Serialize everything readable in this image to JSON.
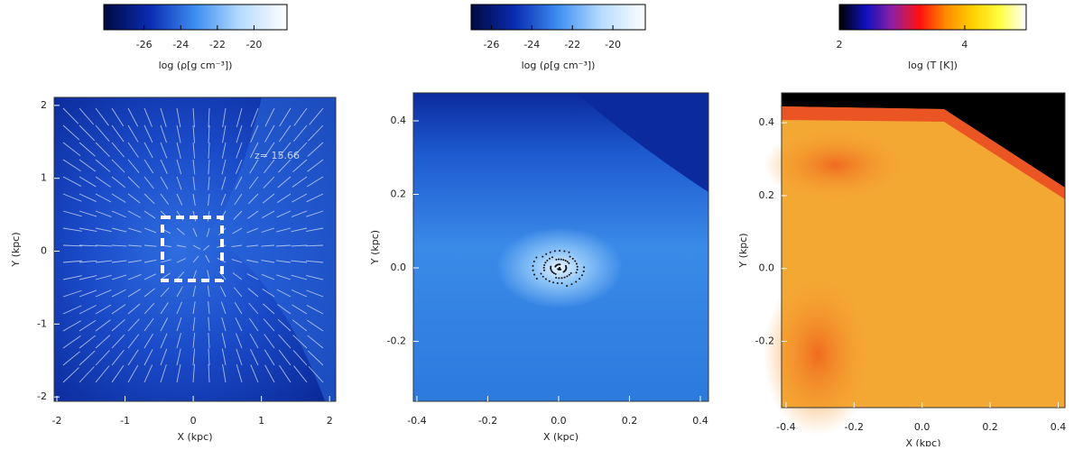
{
  "chart_data": [
    {
      "type": "image",
      "colorbar": {
        "label": "log (ρ[g cm⁻³])",
        "lim": [
          -28.2,
          -18.2
        ],
        "ticks": [
          -26,
          -24,
          -22,
          -20
        ],
        "colormap": [
          "#000a40",
          "#0a2bb0",
          "#3d8ef0",
          "#b8dcff",
          "#ffffff"
        ]
      },
      "xlabel": "X (kpc)",
      "ylabel": "Y (kpc)",
      "xlim": [
        -2.04,
        2.09
      ],
      "ylim": [
        -2.06,
        2.11
      ],
      "xticks": [
        -2,
        -1,
        0,
        1,
        2
      ],
      "yticks": [
        -2,
        -1,
        0,
        1,
        2
      ],
      "annotation": "z= 15.66"
    },
    {
      "type": "image",
      "colorbar": {
        "label": "log (ρ[g cm⁻³])",
        "lim": [
          -27.0,
          -18.4
        ],
        "ticks": [
          -26,
          -24,
          -22,
          -20
        ],
        "colormap": [
          "#000a40",
          "#0a2bb0",
          "#3d8ef0",
          "#b8dcff",
          "#ffffff"
        ]
      },
      "xlabel": "X (kpc)",
      "ylabel": "Y (kpc)",
      "xlim": [
        -0.41,
        0.423
      ],
      "ylim": [
        -0.363,
        0.476
      ],
      "xticks": [
        -0.4,
        -0.2,
        {
          "value": 0,
          "label": "0.0"
        },
        0.2,
        0.4
      ],
      "yticks": [
        -0.2,
        {
          "value": 0,
          "label": "0.0"
        },
        0.2,
        0.4
      ]
    },
    {
      "type": "image",
      "colorbar": {
        "label": "log (T [K])",
        "lim": [
          2,
          4.98
        ],
        "ticks": [
          2,
          4
        ],
        "colormap": [
          "#000000",
          "#1010c0",
          "#9020a0",
          "#ff1010",
          "#ff8c00",
          "#ffd000",
          "#ffff40",
          "#ffffff"
        ]
      },
      "xlabel": "X (kpc)",
      "ylabel": "Y (kpc)",
      "xlim": [
        -0.413,
        0.42
      ],
      "ylim": [
        -0.382,
        0.482
      ],
      "xticks": [
        -0.4,
        -0.2,
        {
          "value": 0,
          "label": "0.0"
        },
        0.2,
        0.4
      ],
      "yticks": [
        -0.2,
        {
          "value": 0,
          "label": "0.0"
        },
        0.2,
        0.4
      ]
    }
  ]
}
